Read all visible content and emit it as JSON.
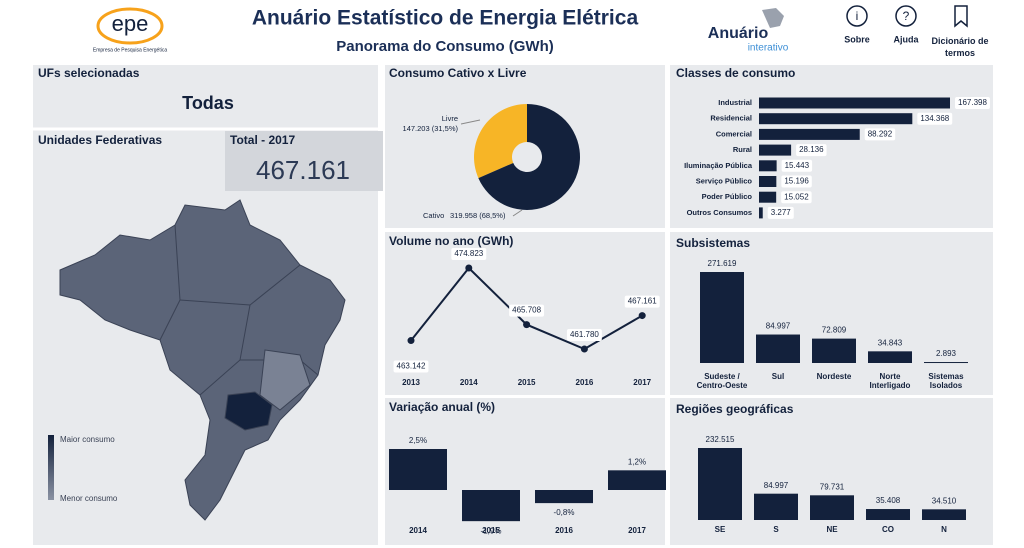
{
  "header": {
    "logo": "epe",
    "logo_caption": "Empresa de Pesquisa Energética",
    "title": "Anuário Estatístico de Energia Elétrica",
    "subtitle": "Panorama do Consumo (GWh)",
    "brand": "Anuário",
    "brand_sub": "interativo",
    "buttons": [
      "Sobre",
      "Ajuda",
      "Dicionário de termos"
    ]
  },
  "filters": {
    "label": "UFs selecionadas",
    "value": "Todas"
  },
  "map": {
    "title": "Unidades Federativas",
    "legend_max": "Maior consumo",
    "legend_min": "Menor consumo"
  },
  "total": {
    "label": "Total - 2017",
    "value": "467.161"
  },
  "chart_data": [
    {
      "type": "donut",
      "title": "Consumo Cativo x Livre",
      "categories": [
        "Livre",
        "Cativo"
      ],
      "values": [
        147203,
        319958
      ],
      "value_labels": [
        "147.203 (31,5%)",
        "319.958 (68,5%)"
      ],
      "colors": [
        "#f7b526",
        "#13213c"
      ]
    },
    {
      "type": "hbar",
      "title": "Classes de consumo",
      "categories": [
        "Industrial",
        "Residencial",
        "Comercial",
        "Rural",
        "Iluminação Pública",
        "Serviço Público",
        "Poder Público",
        "Outros Consumos"
      ],
      "values": [
        167398,
        134368,
        88292,
        28136,
        15443,
        15196,
        15052,
        3277
      ],
      "value_labels": [
        "167.398",
        "134.368",
        "88.292",
        "28.136",
        "15.443",
        "15.196",
        "15.052",
        "3.277"
      ],
      "color": "#13213c"
    },
    {
      "type": "line",
      "title": "Volume no ano (GWh)",
      "categories": [
        "2013",
        "2014",
        "2015",
        "2016",
        "2017"
      ],
      "values": [
        463142,
        474823,
        465708,
        461780,
        467161
      ],
      "value_labels": [
        "463.142",
        "474.823",
        "465.708",
        "461.780",
        "467.161"
      ],
      "color": "#13213c"
    },
    {
      "type": "bar",
      "title": "Subsistemas",
      "categories": [
        "Sudeste / Centro-Oeste",
        "Sul",
        "Nordeste",
        "Norte Interligado",
        "Sistemas Isolados"
      ],
      "values": [
        271619,
        84997,
        72809,
        34843,
        2893
      ],
      "value_labels": [
        "271.619",
        "84.997",
        "72.809",
        "34.843",
        "2.893"
      ],
      "color": "#13213c"
    },
    {
      "type": "bar",
      "title": "Variação anual (%)",
      "categories": [
        "2014",
        "2015",
        "2016",
        "2017"
      ],
      "values": [
        2.5,
        -1.9,
        -0.8,
        1.2
      ],
      "value_labels": [
        "2,5%",
        "-1,9%",
        "-0,8%",
        "1,2%"
      ],
      "color": "#13213c"
    },
    {
      "type": "bar",
      "title": "Regiões geográficas",
      "categories": [
        "SE",
        "S",
        "NE",
        "CO",
        "N"
      ],
      "values": [
        232515,
        84997,
        79731,
        35408,
        34510
      ],
      "value_labels": [
        "232.515",
        "84.997",
        "79.731",
        "35.408",
        "34.510"
      ],
      "color": "#13213c"
    }
  ]
}
